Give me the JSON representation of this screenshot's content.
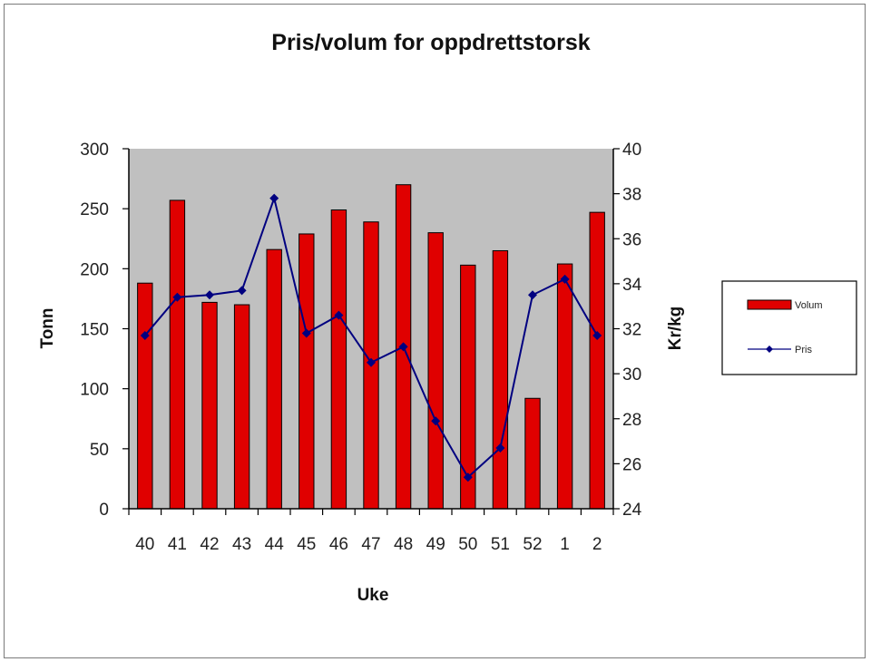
{
  "chart_data": {
    "type": "bar",
    "title": "Pris/volum for oppdrettstorsk",
    "xlabel": "Uke",
    "ylabel": "Tonn",
    "y2label": "Kr/kg",
    "categories": [
      "40",
      "41",
      "42",
      "43",
      "44",
      "45",
      "46",
      "47",
      "48",
      "49",
      "50",
      "51",
      "52",
      "1",
      "2"
    ],
    "ylim": [
      0,
      300
    ],
    "yticks": [
      0,
      50,
      100,
      150,
      200,
      250,
      300
    ],
    "y2lim": [
      24,
      40
    ],
    "y2ticks": [
      24,
      26,
      28,
      30,
      32,
      34,
      36,
      38,
      40
    ],
    "grid": false,
    "legend_position": "right",
    "plot_background": "#c0c0c0",
    "series": [
      {
        "name": "Volum",
        "type": "bar",
        "axis": "left",
        "color": "#e00000",
        "values": [
          188,
          257,
          172,
          170,
          216,
          229,
          249,
          239,
          270,
          230,
          203,
          215,
          92,
          204,
          247
        ]
      },
      {
        "name": "Pris",
        "type": "line",
        "axis": "right",
        "color": "#000080",
        "marker": "diamond",
        "values": [
          31.7,
          33.4,
          33.5,
          33.7,
          37.8,
          31.8,
          32.6,
          30.5,
          31.2,
          27.9,
          25.4,
          26.7,
          33.5,
          34.2,
          31.7
        ]
      }
    ]
  }
}
